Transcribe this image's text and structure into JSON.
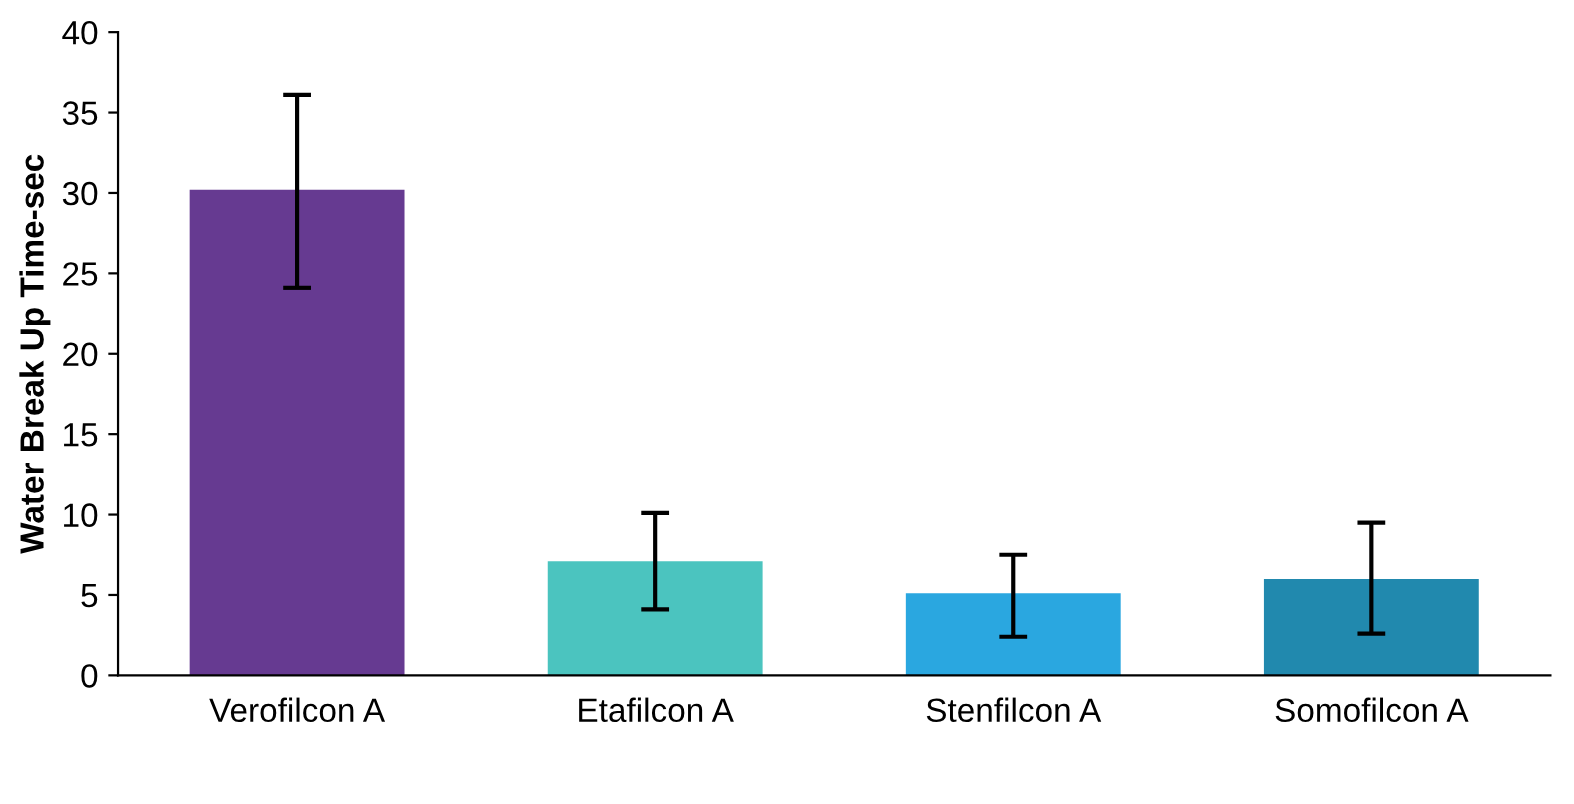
{
  "chart_data": {
    "type": "bar",
    "ylabel": "Water Break Up Time-sec",
    "categories": [
      "Verofilcon A",
      "Etafilcon A",
      "Stenfilcon A",
      "Somofilcon A"
    ],
    "values": [
      30.2,
      7.1,
      5.1,
      6.0
    ],
    "colors": [
      "#663a91",
      "#4bc4bf",
      "#2aa7e0",
      "#2189ae"
    ],
    "errors": [
      [
        24.1,
        36.1
      ],
      [
        4.1,
        10.1
      ],
      [
        2.4,
        7.5
      ],
      [
        2.6,
        9.5
      ]
    ],
    "ylim": [
      0,
      40
    ],
    "yticks": [
      0,
      5,
      10,
      15,
      20,
      25,
      30,
      35,
      40
    ],
    "grid": false,
    "legend": false
  }
}
